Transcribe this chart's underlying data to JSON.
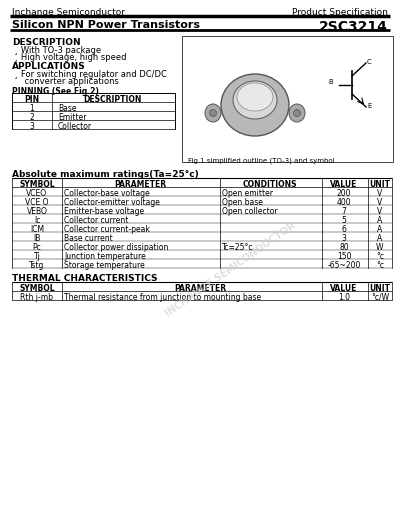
{
  "company": "Inchange Semiconductor",
  "product_spec": "Product Specification",
  "title": "Silicon NPN Power Transistors",
  "part_number": "2SC3214",
  "description_title": "DESCRIPTION",
  "description_lines": [
    "¸ With TO-3 package",
    "¸ High voltage, high speed"
  ],
  "applications_title": "APPLICATIONS",
  "applications_lines": [
    "¸ For switching regulator and DC/DC",
    "    converter applications"
  ],
  "pinning_title": "PINNING (See Fig.2)",
  "pinning_headers": [
    "PIN",
    "DESCRIPTION"
  ],
  "pinning_rows": [
    [
      "1",
      "Base"
    ],
    [
      "2",
      "Emitter"
    ],
    [
      "3",
      "Collector"
    ]
  ],
  "fig_caption": "Fig.1 simplified outline (TO-3) and symbol",
  "abs_max_title": "Absolute maximum ratings(Ta=25°c)",
  "abs_headers": [
    "SYMBOL",
    "PARAMETER",
    "CONDITIONS",
    "VALUE",
    "UNIT"
  ],
  "abs_rows": [
    [
      "VCEO",
      "Collector-base voltage",
      "Open emitter",
      "200",
      "V"
    ],
    [
      "VCE O",
      "Collector-emitter voltage",
      "Open base",
      "400",
      "V"
    ],
    [
      "VEBO",
      "Emitter-base voltage",
      "Open collector",
      "7",
      "V"
    ],
    [
      "Ic",
      "Collector current",
      "",
      "5",
      "A"
    ],
    [
      "ICM",
      "Collector current-peak",
      "",
      "6",
      "A"
    ],
    [
      "IB",
      "Base current",
      "",
      "3",
      "A"
    ],
    [
      "Pc",
      "Collector power dissipation",
      "Tc=25°c",
      "80",
      "W"
    ],
    [
      "Tj",
      "Junction temperature",
      "",
      "150",
      "°c"
    ],
    [
      "Tstg",
      "Storage temperature",
      "",
      "-65~200",
      "°c"
    ]
  ],
  "thermal_title": "THERMAL CHARACTERISTICS",
  "thermal_headers": [
    "SYMBOL",
    "PARAMETER",
    "VALUE",
    "UNIT"
  ],
  "thermal_rows": [
    [
      "Rth j-mb",
      "Thermal resistance from junction to mounting base",
      "1.0",
      "°c/W"
    ]
  ],
  "bg_color": "#ffffff"
}
